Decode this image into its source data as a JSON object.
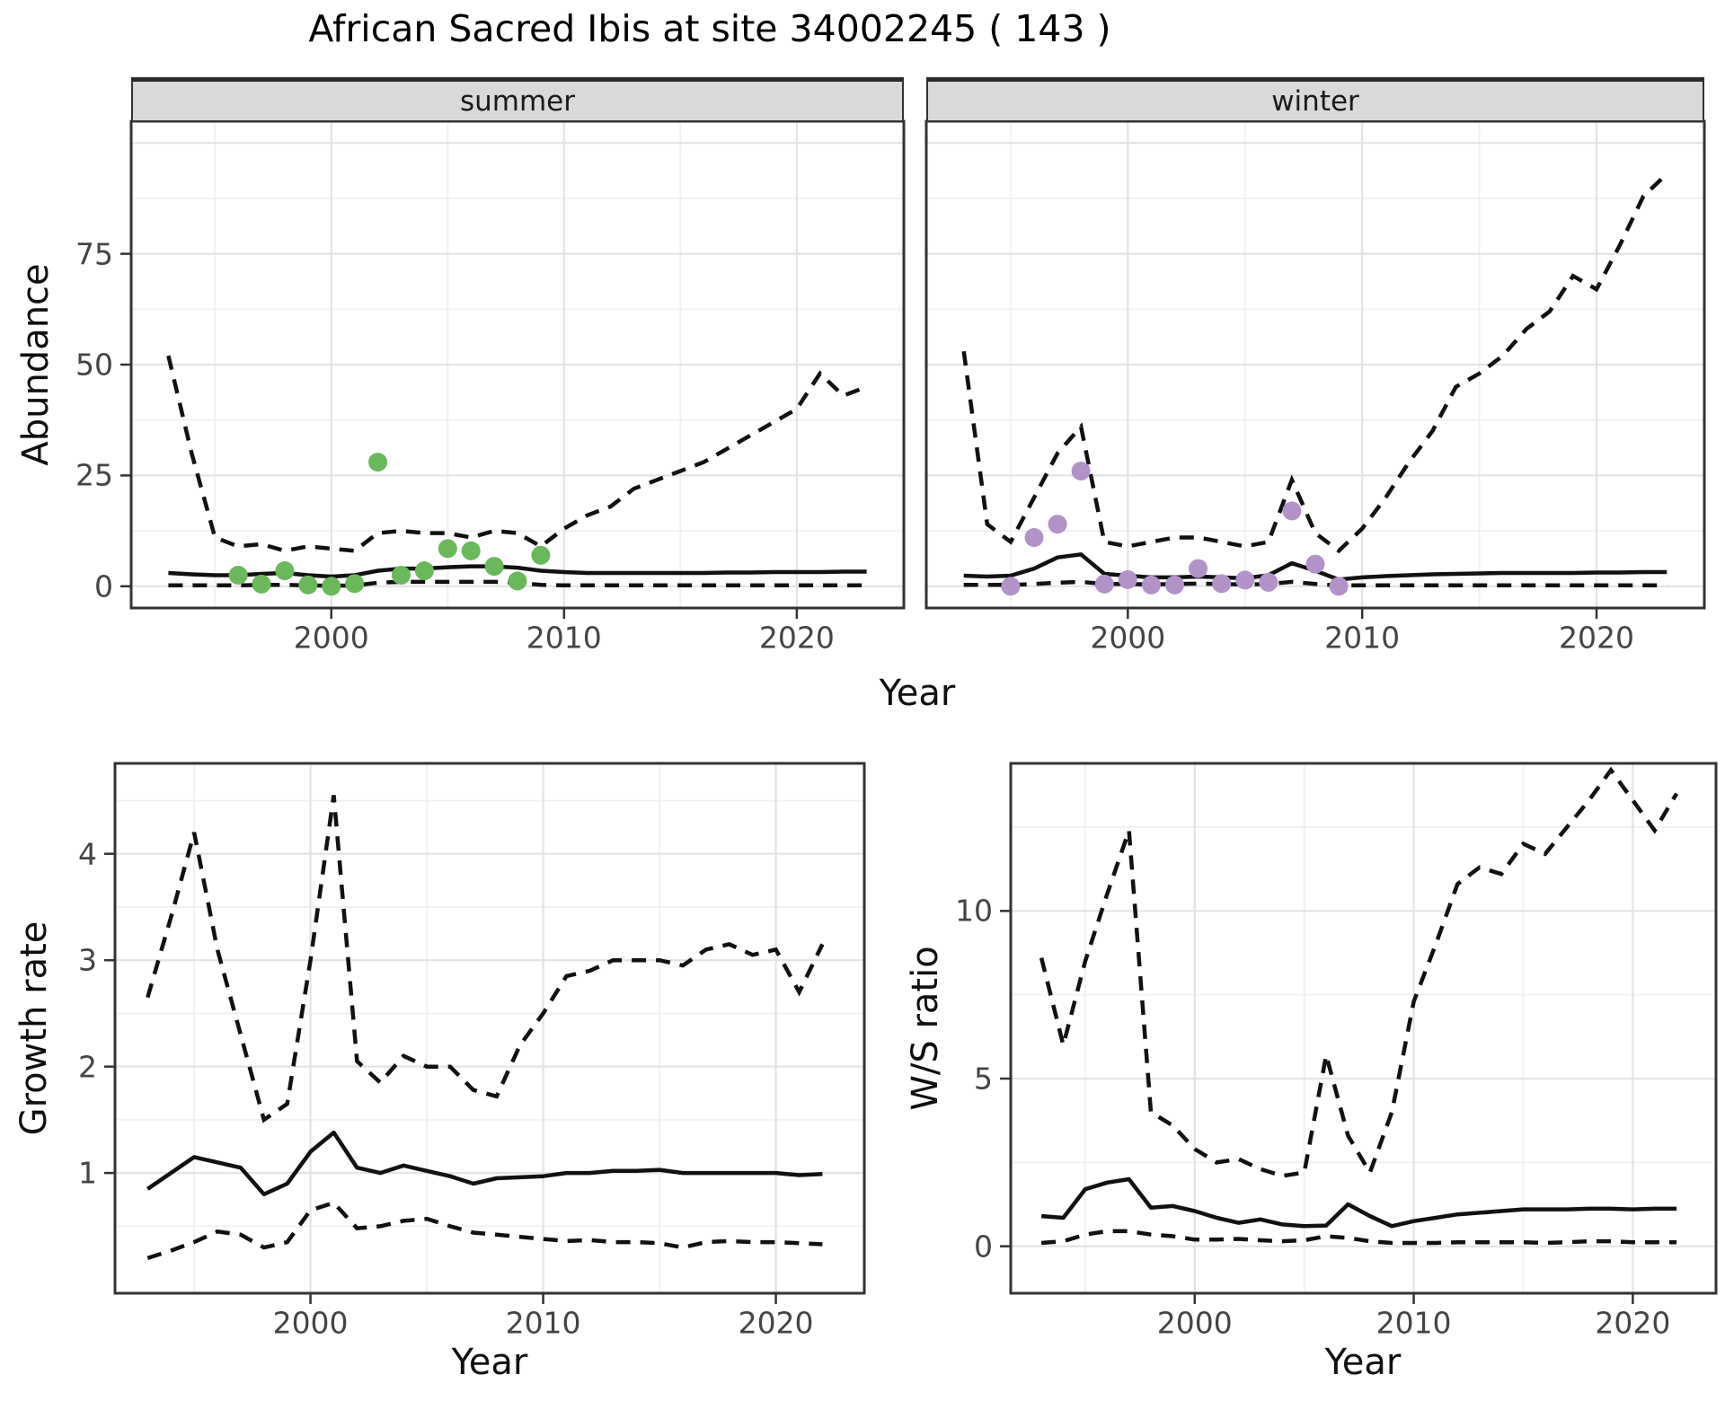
{
  "title": "African Sacred Ibis at site 34002245 ( 143 )",
  "style": {
    "summer_point_color": "#69B95A",
    "winter_point_color": "#B292C8",
    "line_color": "#111111",
    "grid_major_color": "#E3E3E3",
    "grid_minor_color": "#F0F0F0",
    "strip_bg": "#D9D9D9",
    "panel_border": "#333333",
    "tick_text_color": "#444444"
  },
  "chart_data": [
    {
      "type": "line",
      "name": "abundance_by_season",
      "xlabel": "Year",
      "ylabel": "Abundance",
      "legend_position": "none",
      "grid": true,
      "xticks": [
        2000,
        2010,
        2020
      ],
      "yticks": [
        0,
        25,
        50,
        75
      ],
      "x_minor": [
        1995,
        2005,
        2015
      ],
      "y_major": [
        0,
        25,
        50,
        75,
        100
      ],
      "y_minor": [
        12.5,
        37.5,
        62.5,
        87.5
      ],
      "xlim": [
        1991.4,
        2024.6
      ],
      "ylim": [
        -4.9,
        104.9
      ],
      "years": [
        1993,
        1994,
        1995,
        1996,
        1997,
        1998,
        1999,
        2000,
        2001,
        2002,
        2003,
        2004,
        2005,
        2006,
        2007,
        2008,
        2009,
        2010,
        2011,
        2012,
        2013,
        2014,
        2015,
        2016,
        2017,
        2018,
        2019,
        2020,
        2021,
        2022,
        2023
      ],
      "facets": [
        {
          "label": "summer",
          "upper_ci": [
            52,
            30,
            11,
            9,
            9.5,
            8,
            9,
            8.5,
            8,
            12,
            12.5,
            12,
            12,
            11,
            12.5,
            12,
            9,
            13,
            16,
            18,
            22,
            24,
            26,
            28,
            31,
            34,
            37,
            40,
            48,
            43,
            45
          ],
          "median": [
            3,
            2.7,
            2.5,
            2.5,
            2.8,
            3,
            2.5,
            2.2,
            2.5,
            3.5,
            4,
            4,
            4.3,
            4.5,
            4.5,
            4.2,
            3.5,
            3.2,
            3,
            3,
            3,
            3,
            3,
            3,
            3.1,
            3.1,
            3.2,
            3.2,
            3.2,
            3.3,
            3.3
          ],
          "lower_ci": [
            0.2,
            0.2,
            0.2,
            0.2,
            0.3,
            0.3,
            0.2,
            0.1,
            0.2,
            0.8,
            1,
            1,
            1,
            1,
            1,
            0.8,
            0.3,
            0.2,
            0.2,
            0.2,
            0.2,
            0.2,
            0.2,
            0.2,
            0.2,
            0.2,
            0.2,
            0.2,
            0.2,
            0.2,
            0.2
          ],
          "obs_years": [
            1996,
            1997,
            1998,
            1999,
            2000,
            2001,
            2002,
            2003,
            2004,
            2005,
            2006,
            2007,
            2008,
            2009
          ],
          "obs_values": [
            2.5,
            0.5,
            3.5,
            0.3,
            0,
            0.6,
            28,
            2.5,
            3.5,
            8.5,
            8,
            4.5,
            1.2,
            7
          ],
          "point_color": "#69B95A"
        },
        {
          "label": "winter",
          "upper_ci": [
            53,
            14,
            10,
            20,
            30,
            36,
            10,
            9,
            10,
            11,
            11,
            10,
            9,
            10,
            24,
            12,
            8,
            13,
            20,
            28,
            35,
            45,
            48,
            52,
            58,
            62,
            70,
            67,
            77,
            88,
            93
          ],
          "median": [
            2.4,
            2.2,
            2.4,
            4,
            6.5,
            7.2,
            2.8,
            2.4,
            2,
            2,
            2.2,
            2,
            1.8,
            2.5,
            5.2,
            3.5,
            1.5,
            2,
            2.3,
            2.5,
            2.7,
            2.8,
            2.9,
            3,
            3,
            3,
            3,
            3.1,
            3.1,
            3.2,
            3.2
          ],
          "lower_ci": [
            0.3,
            0.3,
            0.3,
            0.5,
            0.8,
            1,
            0.5,
            0.5,
            0.4,
            0.5,
            0.6,
            0.5,
            0.4,
            0.5,
            1,
            0.5,
            0.2,
            0.2,
            0.2,
            0.2,
            0.2,
            0.2,
            0.2,
            0.2,
            0.2,
            0.2,
            0.2,
            0.2,
            0.2,
            0.2,
            0.2
          ],
          "obs_years": [
            1995,
            1996,
            1997,
            1998,
            1999,
            2000,
            2001,
            2002,
            2003,
            2004,
            2005,
            2006,
            2007,
            2008,
            2009
          ],
          "obs_values": [
            0,
            11,
            14,
            26,
            0.5,
            1.5,
            0.3,
            0.3,
            4,
            0.6,
            1.4,
            0.9,
            17,
            5,
            0
          ],
          "point_color": "#B292C8"
        }
      ]
    },
    {
      "type": "line",
      "name": "growth_rate",
      "xlabel": "Year",
      "ylabel": "Growth rate",
      "grid": true,
      "xticks": [
        2000,
        2010,
        2020
      ],
      "yticks": [
        1,
        2,
        3,
        4
      ],
      "x_minor": [
        1995,
        2005,
        2015
      ],
      "y_major": [
        1,
        2,
        3,
        4
      ],
      "y_minor": [
        0.5,
        1.5,
        2.5,
        3.5,
        4.5
      ],
      "xlim": [
        1991.6,
        2023.8
      ],
      "ylim": [
        -0.13,
        4.85
      ],
      "years": [
        1993,
        1994,
        1995,
        1996,
        1997,
        1998,
        1999,
        2000,
        2001,
        2002,
        2003,
        2004,
        2005,
        2006,
        2007,
        2008,
        2009,
        2010,
        2011,
        2012,
        2013,
        2014,
        2015,
        2016,
        2017,
        2018,
        2019,
        2020,
        2021,
        2022
      ],
      "upper_ci": [
        2.65,
        3.4,
        4.2,
        3.1,
        2.3,
        1.5,
        1.65,
        3.0,
        4.55,
        2.05,
        1.85,
        2.1,
        2.0,
        2.0,
        1.78,
        1.72,
        2.2,
        2.5,
        2.85,
        2.9,
        3.0,
        3.0,
        3.0,
        2.95,
        3.1,
        3.15,
        3.05,
        3.1,
        2.7,
        3.15
      ],
      "median": [
        0.85,
        1.0,
        1.15,
        1.1,
        1.05,
        0.8,
        0.9,
        1.2,
        1.38,
        1.05,
        1.0,
        1.07,
        1.02,
        0.97,
        0.9,
        0.95,
        0.96,
        0.97,
        1.0,
        1.0,
        1.02,
        1.02,
        1.03,
        1.0,
        1.0,
        1.0,
        1.0,
        1.0,
        0.98,
        0.99
      ],
      "lower_ci": [
        0.2,
        0.27,
        0.35,
        0.45,
        0.42,
        0.3,
        0.35,
        0.65,
        0.72,
        0.48,
        0.5,
        0.55,
        0.57,
        0.5,
        0.44,
        0.42,
        0.4,
        0.38,
        0.36,
        0.37,
        0.35,
        0.35,
        0.34,
        0.3,
        0.35,
        0.36,
        0.35,
        0.35,
        0.34,
        0.33
      ]
    },
    {
      "type": "line",
      "name": "winter_summer_ratio",
      "xlabel": "Year",
      "ylabel": "W/S ratio",
      "grid": true,
      "xticks": [
        2000,
        2010,
        2020
      ],
      "yticks": [
        0,
        5,
        10
      ],
      "x_minor": [
        1995,
        2005,
        2015
      ],
      "y_major": [
        0,
        5,
        10
      ],
      "y_minor": [
        2.5,
        7.5,
        12.5
      ],
      "xlim": [
        1991.6,
        2023.8
      ],
      "ylim": [
        -1.4,
        14.4
      ],
      "years": [
        1993,
        1994,
        1995,
        1996,
        1997,
        1998,
        1999,
        2000,
        2001,
        2002,
        2003,
        2004,
        2005,
        2006,
        2007,
        2008,
        2009,
        2010,
        2011,
        2012,
        2013,
        2014,
        2015,
        2016,
        2017,
        2018,
        2019,
        2020,
        2021,
        2022
      ],
      "upper_ci": [
        8.6,
        6.0,
        8.5,
        10.5,
        12.4,
        4.0,
        3.6,
        2.9,
        2.5,
        2.6,
        2.3,
        2.1,
        2.2,
        5.7,
        3.3,
        2.2,
        4.0,
        7.3,
        9.0,
        10.8,
        11.3,
        11.1,
        12.0,
        11.7,
        12.5,
        13.3,
        14.2,
        13.3,
        12.4,
        13.5
      ],
      "median": [
        0.9,
        0.85,
        1.7,
        1.9,
        2.0,
        1.15,
        1.2,
        1.05,
        0.85,
        0.7,
        0.8,
        0.65,
        0.6,
        0.62,
        1.25,
        0.9,
        0.6,
        0.75,
        0.85,
        0.95,
        1.0,
        1.05,
        1.1,
        1.1,
        1.1,
        1.12,
        1.12,
        1.1,
        1.12,
        1.12
      ],
      "lower_ci": [
        0.1,
        0.15,
        0.35,
        0.45,
        0.45,
        0.35,
        0.3,
        0.2,
        0.2,
        0.22,
        0.18,
        0.15,
        0.18,
        0.3,
        0.25,
        0.15,
        0.1,
        0.1,
        0.1,
        0.12,
        0.12,
        0.12,
        0.12,
        0.1,
        0.12,
        0.15,
        0.15,
        0.12,
        0.12,
        0.12
      ]
    }
  ]
}
